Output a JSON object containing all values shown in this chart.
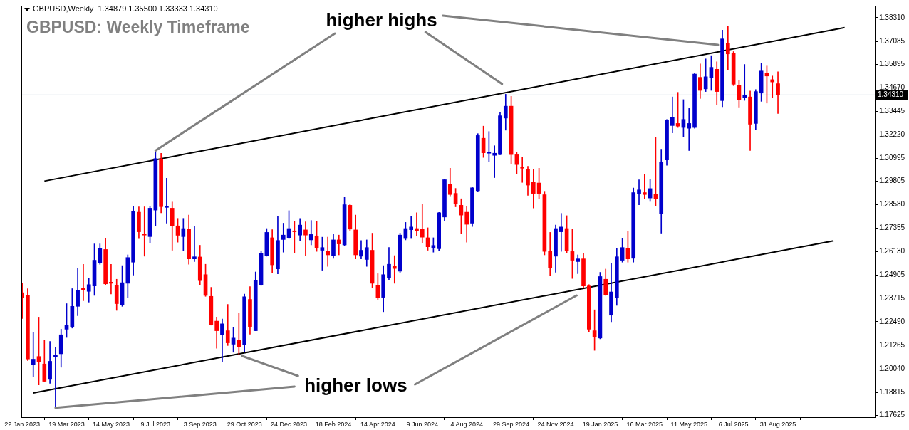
{
  "chart_data": {
    "type": "candlestick",
    "title": "GBPUSD: Weekly Timeframe",
    "subtitle": "GBPUSD,Weekly  1.34879 1.35500 1.33333 1.34310",
    "x": [
      "2023-01-22",
      "2023-01-29",
      "2023-02-05",
      "2023-02-12",
      "2023-02-19",
      "2023-02-26",
      "2023-03-05",
      "2023-03-12",
      "2023-03-19",
      "2023-03-26",
      "2023-04-02",
      "2023-04-09",
      "2023-04-16",
      "2023-04-23",
      "2023-04-30",
      "2023-05-07",
      "2023-05-14",
      "2023-05-21",
      "2023-05-28",
      "2023-06-04",
      "2023-06-11",
      "2023-06-18",
      "2023-06-25",
      "2023-07-02",
      "2023-07-09",
      "2023-07-16",
      "2023-07-23",
      "2023-07-30",
      "2023-08-06",
      "2023-08-13",
      "2023-08-20",
      "2023-08-27",
      "2023-09-03",
      "2023-09-10",
      "2023-09-17",
      "2023-09-24",
      "2023-10-01",
      "2023-10-08",
      "2023-10-15",
      "2023-10-22",
      "2023-10-29",
      "2023-11-05",
      "2023-11-12",
      "2023-11-19",
      "2023-11-26",
      "2023-12-03",
      "2023-12-10",
      "2023-12-17",
      "2023-12-24",
      "2023-12-31",
      "2024-01-07",
      "2024-01-14",
      "2024-01-21",
      "2024-01-28",
      "2024-02-04",
      "2024-02-11",
      "2024-02-18",
      "2024-02-25",
      "2024-03-03",
      "2024-03-10",
      "2024-03-17",
      "2024-03-24",
      "2024-03-31",
      "2024-04-07",
      "2024-04-14",
      "2024-04-21",
      "2024-04-28",
      "2024-05-05",
      "2024-05-12",
      "2024-05-19",
      "2024-05-26",
      "2024-06-02",
      "2024-06-09",
      "2024-06-16",
      "2024-06-23",
      "2024-06-30",
      "2024-07-07",
      "2024-07-14",
      "2024-07-21",
      "2024-07-28",
      "2024-08-04",
      "2024-08-11",
      "2024-08-18",
      "2024-08-25",
      "2024-09-01",
      "2024-09-08",
      "2024-09-15",
      "2024-09-22",
      "2024-09-29",
      "2024-10-06",
      "2024-10-13",
      "2024-10-20",
      "2024-10-27",
      "2024-11-03",
      "2024-11-10",
      "2024-11-17",
      "2024-11-24",
      "2024-12-01",
      "2024-12-08",
      "2024-12-15",
      "2024-12-22",
      "2024-12-29",
      "2025-01-05",
      "2025-01-12",
      "2025-01-19",
      "2025-01-26",
      "2025-02-02",
      "2025-02-09",
      "2025-02-16",
      "2025-02-23",
      "2025-03-02",
      "2025-03-09",
      "2025-03-16",
      "2025-03-23",
      "2025-03-30",
      "2025-04-06",
      "2025-04-13",
      "2025-04-20",
      "2025-04-27",
      "2025-05-04",
      "2025-05-11",
      "2025-05-18",
      "2025-05-25",
      "2025-06-01",
      "2025-06-08",
      "2025-06-15",
      "2025-06-22",
      "2025-06-29",
      "2025-07-06",
      "2025-07-13",
      "2025-07-20",
      "2025-07-27",
      "2025-08-03",
      "2025-08-10",
      "2025-08-17",
      "2025-08-24",
      "2025-08-31"
    ],
    "ohlc": [
      [
        1.24,
        1.2449,
        1.2266,
        1.2372
      ],
      [
        1.2386,
        1.2421,
        1.2047,
        1.2055
      ],
      [
        1.2026,
        1.2195,
        1.1963,
        1.2054
      ],
      [
        1.2068,
        1.2273,
        1.192,
        1.204
      ],
      [
        1.2029,
        1.2153,
        1.1935,
        1.1939
      ],
      [
        1.1949,
        1.2146,
        1.1928,
        1.2043
      ],
      [
        1.2068,
        1.2114,
        1.1801,
        1.2074
      ],
      [
        1.2082,
        1.221,
        1.2012,
        1.2181
      ],
      [
        1.221,
        1.2343,
        1.2167,
        1.2231
      ],
      [
        1.2224,
        1.2421,
        1.2216,
        1.2329
      ],
      [
        1.2329,
        1.2527,
        1.228,
        1.2414
      ],
      [
        1.2424,
        1.2548,
        1.2358,
        1.2415
      ],
      [
        1.2407,
        1.2477,
        1.2351,
        1.2442
      ],
      [
        1.2435,
        1.2654,
        1.2386,
        1.2569
      ],
      [
        1.2555,
        1.2654,
        1.2548,
        1.2632
      ],
      [
        1.2625,
        1.2682,
        1.2442,
        1.2446
      ],
      [
        1.2455,
        1.2548,
        1.2393,
        1.2449
      ],
      [
        1.2438,
        1.247,
        1.2308,
        1.2343
      ],
      [
        1.2336,
        1.2541,
        1.2329,
        1.2452
      ],
      [
        1.2449,
        1.2597,
        1.2372,
        1.2583
      ],
      [
        1.2559,
        1.2851,
        1.2492,
        1.2823
      ],
      [
        1.2819,
        1.2847,
        1.2682,
        1.2717
      ],
      [
        1.2706,
        1.2847,
        1.259,
        1.27
      ],
      [
        1.2692,
        1.2851,
        1.2658,
        1.284
      ],
      [
        1.283,
        1.314,
        1.2748,
        1.3098
      ],
      [
        1.3095,
        1.3126,
        1.2816,
        1.2848
      ],
      [
        1.2844,
        1.2996,
        1.2762,
        1.285
      ],
      [
        1.284,
        1.2872,
        1.2621,
        1.2748
      ],
      [
        1.2748,
        1.2787,
        1.2663,
        1.2699
      ],
      [
        1.2692,
        1.2787,
        1.2618,
        1.2734
      ],
      [
        1.2731,
        1.2804,
        1.2548,
        1.2576
      ],
      [
        1.2576,
        1.2748,
        1.2562,
        1.2587
      ],
      [
        1.2586,
        1.2647,
        1.2442,
        1.2463
      ],
      [
        1.2494,
        1.2548,
        1.2381,
        1.2386
      ],
      [
        1.2381,
        1.2428,
        1.2231,
        1.2235
      ],
      [
        1.2252,
        1.2273,
        1.2111,
        1.2202
      ],
      [
        1.2181,
        1.2263,
        1.204,
        1.2238
      ],
      [
        1.2202,
        1.2339,
        1.2125,
        1.2139
      ],
      [
        1.2132,
        1.2221,
        1.209,
        1.2164
      ],
      [
        1.2153,
        1.2294,
        1.2076,
        1.2118
      ],
      [
        1.2128,
        1.2393,
        1.209,
        1.2379
      ],
      [
        1.2365,
        1.2432,
        1.2184,
        1.2224
      ],
      [
        1.2202,
        1.2508,
        1.2202,
        1.2463
      ],
      [
        1.2442,
        1.2615,
        1.2438,
        1.2604
      ],
      [
        1.2593,
        1.2734,
        1.259,
        1.2714
      ],
      [
        1.2686,
        1.2728,
        1.2503,
        1.2545
      ],
      [
        1.2524,
        1.2796,
        1.2498,
        1.2672
      ],
      [
        1.2677,
        1.2762,
        1.2611,
        1.27
      ],
      [
        1.2686,
        1.2827,
        1.2682,
        1.2734
      ],
      [
        1.2722,
        1.2773,
        1.2607,
        1.2717
      ],
      [
        1.27,
        1.2787,
        1.2672,
        1.2752
      ],
      [
        1.2727,
        1.2769,
        1.2593,
        1.27
      ],
      [
        1.2675,
        1.2776,
        1.2649,
        1.2703
      ],
      [
        1.2696,
        1.2773,
        1.2615,
        1.2632
      ],
      [
        1.2621,
        1.2689,
        1.2517,
        1.2635
      ],
      [
        1.2618,
        1.2689,
        1.2537,
        1.2597
      ],
      [
        1.2593,
        1.2703,
        1.2579,
        1.2675
      ],
      [
        1.2675,
        1.27,
        1.2597,
        1.2654
      ],
      [
        1.2649,
        1.2896,
        1.2643,
        1.2858
      ],
      [
        1.2855,
        1.2861,
        1.2724,
        1.2731
      ],
      [
        1.2727,
        1.2804,
        1.2576,
        1.2597
      ],
      [
        1.259,
        1.2672,
        1.2576,
        1.2621
      ],
      [
        1.2573,
        1.2675,
        1.2537,
        1.2635
      ],
      [
        1.2621,
        1.271,
        1.2424,
        1.2449
      ],
      [
        1.2438,
        1.2499,
        1.2365,
        1.2372
      ],
      [
        1.2376,
        1.2541,
        1.2301,
        1.2494
      ],
      [
        1.2477,
        1.2636,
        1.2466,
        1.2548
      ],
      [
        1.2538,
        1.2593,
        1.2449,
        1.2526
      ],
      [
        1.2512,
        1.271,
        1.2506,
        1.27
      ],
      [
        1.2682,
        1.2766,
        1.2675,
        1.2734
      ],
      [
        1.2728,
        1.2798,
        1.2682,
        1.2742
      ],
      [
        1.2734,
        1.2816,
        1.2696,
        1.2722
      ],
      [
        1.2731,
        1.2861,
        1.2658,
        1.2689
      ],
      [
        1.2686,
        1.2738,
        1.2621,
        1.2639
      ],
      [
        1.2635,
        1.2686,
        1.2611,
        1.2646
      ],
      [
        1.2629,
        1.2818,
        1.2618,
        1.2816
      ],
      [
        1.2794,
        1.2992,
        1.2776,
        1.2988
      ],
      [
        1.2964,
        1.3048,
        1.29,
        1.2911
      ],
      [
        1.2917,
        1.2943,
        1.2847,
        1.2865
      ],
      [
        1.2855,
        1.2889,
        1.2706,
        1.2804
      ],
      [
        1.2819,
        1.2851,
        1.2663,
        1.2756
      ],
      [
        1.2762,
        1.295,
        1.2745,
        1.2946
      ],
      [
        1.2931,
        1.3228,
        1.2928,
        1.3218
      ],
      [
        1.3204,
        1.3267,
        1.3104,
        1.3128
      ],
      [
        1.3126,
        1.3239,
        1.3083,
        1.3132
      ],
      [
        1.3115,
        1.3165,
        1.2999,
        1.3126
      ],
      [
        1.3119,
        1.334,
        1.3118,
        1.3321
      ],
      [
        1.3309,
        1.3433,
        1.3246,
        1.3371
      ],
      [
        1.3371,
        1.3422,
        1.3069,
        1.3119
      ],
      [
        1.3118,
        1.3133,
        1.302,
        1.3067
      ],
      [
        1.3053,
        1.3105,
        1.2974,
        1.3048
      ],
      [
        1.3044,
        1.3058,
        1.2907,
        1.296
      ],
      [
        1.2974,
        1.3044,
        1.2841,
        1.2917
      ],
      [
        1.2971,
        1.3048,
        1.2889,
        1.2917
      ],
      [
        1.291,
        1.2928,
        1.2597,
        1.2615
      ],
      [
        1.2618,
        1.2714,
        1.2488,
        1.2531
      ],
      [
        1.259,
        1.2752,
        1.2506,
        1.2734
      ],
      [
        1.2717,
        1.2813,
        1.2615,
        1.2742
      ],
      [
        1.2734,
        1.2801,
        1.2607,
        1.2618
      ],
      [
        1.2614,
        1.2731,
        1.2474,
        1.2569
      ],
      [
        1.2562,
        1.2597,
        1.2499,
        1.2576
      ],
      [
        1.2576,
        1.2607,
        1.2424,
        1.2435
      ],
      [
        1.2435,
        1.2442,
        1.2195,
        1.221
      ],
      [
        1.2202,
        1.2311,
        1.21,
        1.217
      ],
      [
        1.2164,
        1.2506,
        1.216,
        1.2484
      ],
      [
        1.247,
        1.2523,
        1.2386,
        1.239
      ],
      [
        1.2283,
        1.2555,
        1.2249,
        1.2404
      ],
      [
        1.2372,
        1.2632,
        1.2334,
        1.2587
      ],
      [
        1.2569,
        1.2682,
        1.2559,
        1.2635
      ],
      [
        1.2632,
        1.272,
        1.2559,
        1.2576
      ],
      [
        1.2579,
        1.2945,
        1.2559,
        1.2921
      ],
      [
        1.2914,
        1.2988,
        1.2858,
        1.2935
      ],
      [
        1.2921,
        1.3016,
        1.2889,
        1.2911
      ],
      [
        1.2893,
        1.2992,
        1.2875,
        1.2942
      ],
      [
        1.2914,
        1.3211,
        1.2851,
        1.2889
      ],
      [
        1.2813,
        1.3147,
        1.271,
        1.3081
      ],
      [
        1.3091,
        1.3302,
        1.3063,
        1.3298
      ],
      [
        1.327,
        1.3419,
        1.3232,
        1.3312
      ],
      [
        1.3281,
        1.3443,
        1.326,
        1.3267
      ],
      [
        1.326,
        1.3405,
        1.3211,
        1.3302
      ],
      [
        1.3256,
        1.3359,
        1.314,
        1.3281
      ],
      [
        1.326,
        1.3542,
        1.3256,
        1.3538
      ],
      [
        1.3521,
        1.3591,
        1.3411,
        1.3453
      ],
      [
        1.3461,
        1.3617,
        1.3447,
        1.3524
      ],
      [
        1.3521,
        1.3634,
        1.3453,
        1.3573
      ],
      [
        1.3563,
        1.3602,
        1.338,
        1.3447
      ],
      [
        1.34,
        1.3767,
        1.3368,
        1.3721
      ],
      [
        1.3697,
        1.3789,
        1.356,
        1.3643
      ],
      [
        1.3648,
        1.3655,
        1.3478,
        1.3485
      ],
      [
        1.3481,
        1.3504,
        1.3366,
        1.3405
      ],
      [
        1.3415,
        1.3588,
        1.3401,
        1.3429
      ],
      [
        1.3419,
        1.345,
        1.314,
        1.3277
      ],
      [
        1.3281,
        1.3457,
        1.325,
        1.3447
      ],
      [
        1.3439,
        1.3595,
        1.3396,
        1.3554
      ],
      [
        1.3542,
        1.358,
        1.3387,
        1.3528
      ],
      [
        1.3509,
        1.3528,
        1.3415,
        1.3497
      ],
      [
        1.34879,
        1.355,
        1.33333,
        1.3431
      ]
    ],
    "colors": [
      "#ff0000",
      "#ff0000",
      "#0000cc",
      "#ff0000",
      "#ff0000",
      "#0000cc",
      "#0000cc",
      "#0000cc",
      "#0000cc",
      "#0000cc",
      "#0000cc",
      "#ff0000",
      "#0000cc",
      "#0000cc",
      "#0000cc",
      "#ff0000",
      "#ff0000",
      "#ff0000",
      "#0000cc",
      "#0000cc",
      "#0000cc",
      "#ff0000",
      "#ff0000",
      "#0000cc",
      "#0000cc",
      "#ff0000",
      "#0000cc",
      "#ff0000",
      "#ff0000",
      "#0000cc",
      "#ff0000",
      "#0000cc",
      "#ff0000",
      "#ff0000",
      "#ff0000",
      "#ff0000",
      "#0000cc",
      "#ff0000",
      "#0000cc",
      "#ff0000",
      "#0000cc",
      "#ff0000",
      "#0000cc",
      "#0000cc",
      "#0000cc",
      "#ff0000",
      "#0000cc",
      "#0000cc",
      "#0000cc",
      "#ff0000",
      "#0000cc",
      "#ff0000",
      "#0000cc",
      "#ff0000",
      "#0000cc",
      "#ff0000",
      "#0000cc",
      "#ff0000",
      "#0000cc",
      "#ff0000",
      "#ff0000",
      "#0000cc",
      "#0000cc",
      "#ff0000",
      "#ff0000",
      "#0000cc",
      "#0000cc",
      "#ff0000",
      "#0000cc",
      "#0000cc",
      "#0000cc",
      "#ff0000",
      "#ff0000",
      "#ff0000",
      "#0000cc",
      "#0000cc",
      "#0000cc",
      "#ff0000",
      "#ff0000",
      "#ff0000",
      "#ff0000",
      "#0000cc",
      "#0000cc",
      "#ff0000",
      "#0000cc",
      "#0000cc",
      "#0000cc",
      "#0000cc",
      "#ff0000",
      "#ff0000",
      "#ff0000",
      "#ff0000",
      "#ff0000",
      "#ff0000",
      "#ff0000",
      "#ff0000",
      "#0000cc",
      "#0000cc",
      "#ff0000",
      "#ff0000",
      "#0000cc",
      "#ff0000",
      "#ff0000",
      "#ff0000",
      "#0000cc",
      "#ff0000",
      "#0000cc",
      "#0000cc",
      "#0000cc",
      "#ff0000",
      "#0000cc",
      "#0000cc",
      "#ff0000",
      "#0000cc",
      "#ff0000",
      "#0000cc",
      "#0000cc",
      "#0000cc",
      "#ff0000",
      "#0000cc",
      "#0000cc",
      "#0000cc",
      "#ff0000",
      "#0000cc",
      "#0000cc",
      "#ff0000",
      "#0000cc",
      "#ff0000",
      "#ff0000",
      "#ff0000",
      "#0000cc",
      "#ff0000",
      "#0000cc",
      "#0000cc",
      "#ff0000",
      "#ff0000",
      "#ff0000"
    ],
    "series": [
      {
        "type": "line",
        "x": [
          "2023-02-19",
          "2025-11-23"
        ],
        "values": [
          1.2981,
          1.378
        ],
        "color": "#000000"
      },
      {
        "type": "line",
        "x": [
          "2023-02-05",
          "2025-11-09"
        ],
        "values": [
          1.1878,
          1.267
        ],
        "color": "#000000"
      }
    ],
    "xlim": [
      "2023-01-21",
      "2025-12-31"
    ],
    "xticks": [
      {
        "value": "2023-01-22",
        "label": "22 Jan 2023"
      },
      {
        "value": "2023-03-19",
        "label": "19 Mar 2023"
      },
      {
        "value": "2023-05-14",
        "label": "14 May 2023"
      },
      {
        "value": "2023-07-09",
        "label": "9 Jul 2023"
      },
      {
        "value": "2023-09-03",
        "label": "3 Sep 2023"
      },
      {
        "value": "2023-10-29",
        "label": "29 Oct 2023"
      },
      {
        "value": "2023-12-24",
        "label": "24 Dec 2023"
      },
      {
        "value": "2024-02-18",
        "label": "18 Feb 2024"
      },
      {
        "value": "2024-04-14",
        "label": "14 Apr 2024"
      },
      {
        "value": "2024-06-09",
        "label": "9 Jun 2024"
      },
      {
        "value": "2024-08-04",
        "label": "4 Aug 2024"
      },
      {
        "value": "2024-09-29",
        "label": "29 Sep 2024"
      },
      {
        "value": "2024-11-24",
        "label": "24 Nov 2024"
      },
      {
        "value": "2025-01-19",
        "label": "19 Jan 2025"
      },
      {
        "value": "2025-03-16",
        "label": "16 Mar 2025"
      },
      {
        "value": "2025-05-11",
        "label": "11 May 2025"
      },
      {
        "value": "2025-07-06",
        "label": "6 Jul 2025"
      },
      {
        "value": "2025-08-31",
        "label": "31 Aug 2025"
      }
    ],
    "ylim": [
      1.1752,
      1.3894
    ],
    "yticks": [
      {
        "value": 1.17625,
        "label": "1.17625"
      },
      {
        "value": 1.18815,
        "label": "1.18815"
      },
      {
        "value": 1.2004,
        "label": "1.20040"
      },
      {
        "value": 1.21265,
        "label": "1.21265"
      },
      {
        "value": 1.2249,
        "label": "1.22490"
      },
      {
        "value": 1.23715,
        "label": "1.23715"
      },
      {
        "value": 1.24905,
        "label": "1.24905"
      },
      {
        "value": 1.2613,
        "label": "1.26130"
      },
      {
        "value": 1.27355,
        "label": "1.27355"
      },
      {
        "value": 1.2858,
        "label": "1.28580"
      },
      {
        "value": 1.29805,
        "label": "1.29805"
      },
      {
        "value": 1.30995,
        "label": "1.30995"
      },
      {
        "value": 1.3222,
        "label": "1.32220"
      },
      {
        "value": 1.33445,
        "label": "1.33445"
      },
      {
        "value": 1.3467,
        "label": "1.34670"
      },
      {
        "value": 1.35895,
        "label": "1.35895"
      },
      {
        "value": 1.37085,
        "label": "1.37085"
      },
      {
        "value": 1.3831,
        "label": "1.38310"
      }
    ],
    "ref_lines": [
      {
        "axis": "y",
        "value": 1.3431,
        "label": "1.34310",
        "color": "#7a8fa8"
      }
    ],
    "annotations": [
      {
        "text": "higher highs",
        "x": "2023-07-09",
        "y": 1.314
      },
      {
        "text": "higher lows",
        "x": "2023-03-05",
        "y": 1.1801
      }
    ],
    "legend": false,
    "grid": false
  }
}
